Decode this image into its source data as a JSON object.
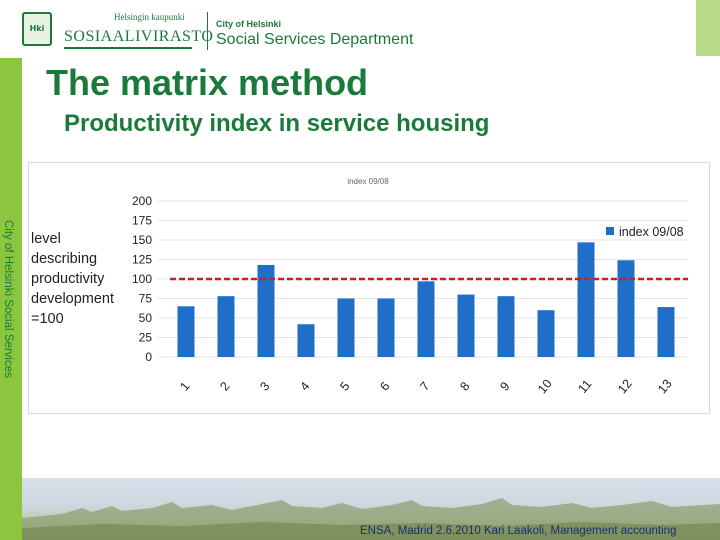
{
  "header": {
    "logo_text": "Hki",
    "city_small": "Helsingin kaupunki",
    "org_name": "SOSIAALIVIRASTO",
    "city": "City of Helsinki",
    "department": "Social Services Department"
  },
  "title": "The matrix method",
  "subtitle": "Productivity index in service housing",
  "side_label": "City of Helsinki Social Services",
  "footer": "ENSA, Madrid 2.6.2010 Kari Laakoli, Management accounting",
  "colors": {
    "accent_green": "#1a7a3c",
    "bar_blue": "#1f6fc9",
    "reference_red": "#cc1f1f"
  },
  "chart_data": {
    "type": "bar",
    "title": "index 09/08",
    "ylabel_lines": [
      "level",
      "describing",
      "productivity",
      "development",
      "=100"
    ],
    "categories": [
      "1",
      "2",
      "3",
      "4",
      "5",
      "6",
      "7",
      "8",
      "9",
      "10",
      "11",
      "12",
      "13"
    ],
    "series": [
      {
        "name": "index 09/08",
        "values": [
          65,
          78,
          118,
          42,
          75,
          75,
          97,
          80,
          78,
          60,
          147,
          124,
          64
        ]
      }
    ],
    "reference_line": 100,
    "ylim": [
      0,
      200
    ],
    "yticks": [
      "0",
      "25",
      "50",
      "75",
      "100",
      "125",
      "150",
      "175",
      "200"
    ],
    "grid": true,
    "legend": "right"
  }
}
